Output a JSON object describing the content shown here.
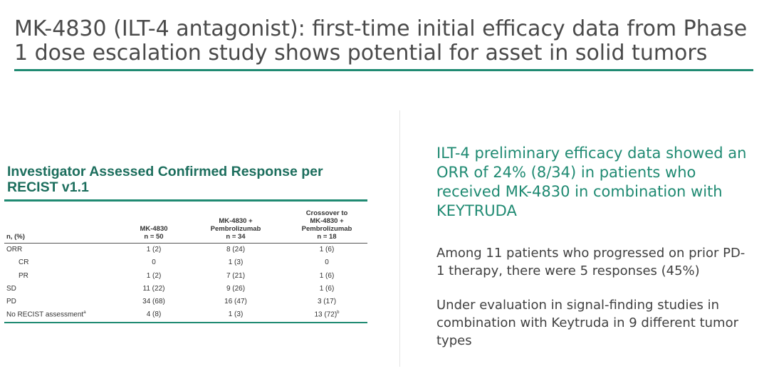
{
  "slide": {
    "title": "MK-4830 (ILT-4 antagonist): first-time initial efficacy data from Phase 1 dose escalation study shows potential for asset in solid tumors",
    "accent_color": "#1f8a72"
  },
  "table": {
    "heading": "Investigator Assessed Confirmed Response per RECIST v1.1",
    "row_header_label": "n, (%)",
    "columns": [
      {
        "lines": [
          "MK-4830",
          "n = 50"
        ]
      },
      {
        "lines": [
          "MK-4830 +",
          "Pembrolizumab",
          "n = 34"
        ]
      },
      {
        "lines": [
          "Crossover to",
          "MK-4830 +",
          "Pembrolizumab",
          "n = 18"
        ]
      }
    ],
    "rows": [
      {
        "label": "ORR",
        "indent": false,
        "values": [
          "1 (2)",
          "8 (24)",
          "1 (6)"
        ]
      },
      {
        "label": "CR",
        "indent": true,
        "values": [
          "0",
          "1 (3)",
          "0"
        ]
      },
      {
        "label": "PR",
        "indent": true,
        "values": [
          "1 (2)",
          "7 (21)",
          "1 (6)"
        ]
      },
      {
        "label": "SD",
        "indent": false,
        "values": [
          "11 (22)",
          "9 (26)",
          "1 (6)"
        ]
      },
      {
        "label": "PD",
        "indent": false,
        "values": [
          "34 (68)",
          "16 (47)",
          "3 (17)"
        ]
      },
      {
        "label": "No RECIST assessment",
        "label_sup": "a",
        "indent": false,
        "values": [
          "4 (8)",
          "1 (3)",
          "13 (72)"
        ],
        "last_sup": "b"
      }
    ]
  },
  "right_panel": {
    "callout": "ILT-4 preliminary efficacy data showed an ORR of 24% (8/34) in patients who received MK-4830 in combination with KEYTRUDA",
    "paragraph1": "Among 11 patients who progressed on prior PD-1 therapy, there were 5 responses (45%)",
    "paragraph2": "Under evaluation in signal-finding studies in combination with Keytruda in 9 different tumor types"
  }
}
